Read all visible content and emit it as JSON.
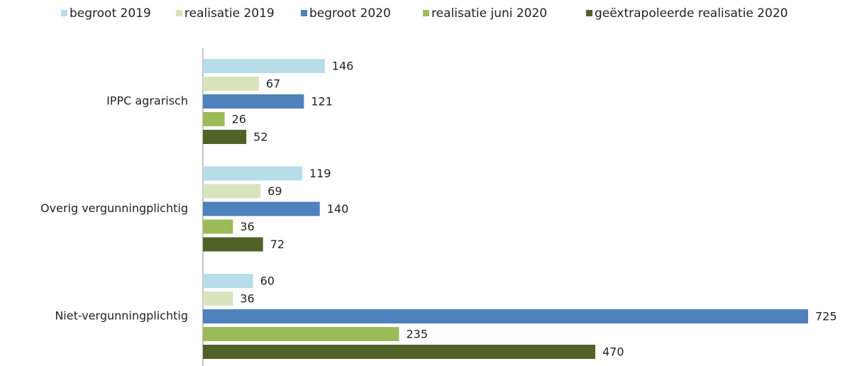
{
  "chart_data": {
    "type": "barh",
    "categories": [
      "IPPC agrarisch",
      "Overig vergunningplichtig",
      "Niet-vergunningplichtig"
    ],
    "series": [
      {
        "name": "begroot 2019",
        "color": "#b7dde8",
        "values": [
          146,
          119,
          60
        ]
      },
      {
        "name": "realisatie 2019",
        "color": "#d7e4bd",
        "values": [
          67,
          69,
          36
        ]
      },
      {
        "name": "begroot 2020",
        "color": "#4f81bd",
        "values": [
          121,
          140,
          725
        ]
      },
      {
        "name": "realisatie juni 2020",
        "color": "#9bbb59",
        "values": [
          26,
          36,
          235
        ]
      },
      {
        "name": "geëxtrapoleerde realisatie 2020",
        "color": "#4f6228",
        "values": [
          52,
          72,
          470
        ]
      }
    ],
    "xlim": [
      0,
      725
    ]
  }
}
